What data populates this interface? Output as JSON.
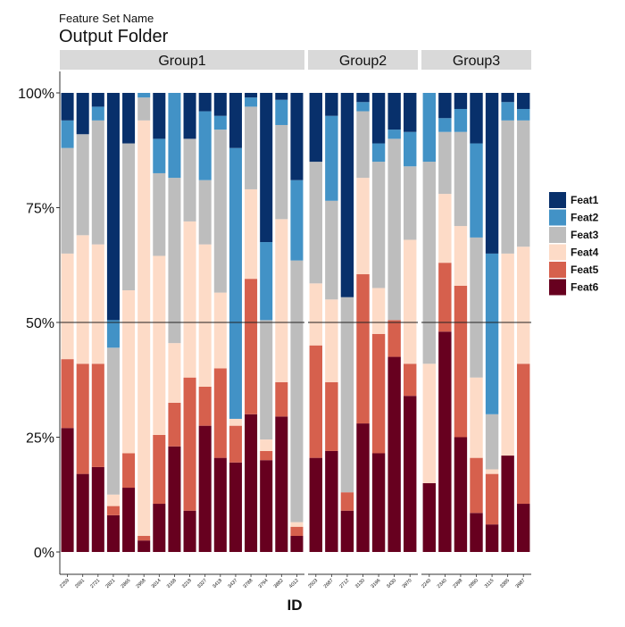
{
  "header": {
    "subtitle": "Feature Set Name",
    "title": "Output Folder"
  },
  "chart_data": {
    "type": "bar",
    "stacked": true,
    "normalized": true,
    "xlabel": "ID",
    "ylabel": "",
    "ylim": [
      0,
      1
    ],
    "yticks": [
      "0%",
      "25%",
      "50%",
      "75%",
      "100%"
    ],
    "reference_line": 0.5,
    "legend_placement": "right",
    "features": [
      "Feat1",
      "Feat2",
      "Feat3",
      "Feat4",
      "Feat5",
      "Feat6"
    ],
    "colors": {
      "Feat1": "#08306b",
      "Feat2": "#4292c6",
      "Feat3": "#bdbdbd",
      "Feat4": "#fddbc7",
      "Feat5": "#d6604d",
      "Feat6": "#67001f"
    },
    "groups": [
      {
        "name": "Group1",
        "samples": [
          {
            "id": "2259",
            "values": {
              "Feat6": 0.27,
              "Feat5": 0.15,
              "Feat4": 0.23,
              "Feat3": 0.23,
              "Feat2": 0.06,
              "Feat1": 0.06
            }
          },
          {
            "id": "2691",
            "values": {
              "Feat6": 0.17,
              "Feat5": 0.24,
              "Feat4": 0.28,
              "Feat3": 0.22,
              "Feat2": 0.0,
              "Feat1": 0.09
            }
          },
          {
            "id": "2721",
            "values": {
              "Feat6": 0.185,
              "Feat5": 0.225,
              "Feat4": 0.26,
              "Feat3": 0.27,
              "Feat2": 0.03,
              "Feat1": 0.03
            }
          },
          {
            "id": "2821",
            "values": {
              "Feat6": 0.08,
              "Feat5": 0.02,
              "Feat4": 0.025,
              "Feat3": 0.32,
              "Feat2": 0.06,
              "Feat1": 0.495
            }
          },
          {
            "id": "2865",
            "values": {
              "Feat6": 0.14,
              "Feat5": 0.075,
              "Feat4": 0.355,
              "Feat3": 0.32,
              "Feat2": 0.0,
              "Feat1": 0.11
            }
          },
          {
            "id": "2958",
            "values": {
              "Feat6": 0.025,
              "Feat5": 0.01,
              "Feat4": 0.905,
              "Feat3": 0.05,
              "Feat2": 0.01,
              "Feat1": 0.0
            }
          },
          {
            "id": "3014",
            "values": {
              "Feat6": 0.105,
              "Feat5": 0.15,
              "Feat4": 0.39,
              "Feat3": 0.18,
              "Feat2": 0.075,
              "Feat1": 0.1
            }
          },
          {
            "id": "3168",
            "values": {
              "Feat6": 0.23,
              "Feat5": 0.095,
              "Feat4": 0.13,
              "Feat3": 0.36,
              "Feat2": 0.185,
              "Feat1": 0.0
            }
          },
          {
            "id": "3218",
            "values": {
              "Feat6": 0.09,
              "Feat5": 0.29,
              "Feat4": 0.34,
              "Feat3": 0.18,
              "Feat2": 0.0,
              "Feat1": 0.1
            }
          },
          {
            "id": "3327",
            "values": {
              "Feat6": 0.275,
              "Feat5": 0.085,
              "Feat4": 0.31,
              "Feat3": 0.14,
              "Feat2": 0.15,
              "Feat1": 0.04
            }
          },
          {
            "id": "3418",
            "values": {
              "Feat6": 0.205,
              "Feat5": 0.195,
              "Feat4": 0.165,
              "Feat3": 0.355,
              "Feat2": 0.03,
              "Feat1": 0.05
            }
          },
          {
            "id": "3437",
            "values": {
              "Feat6": 0.195,
              "Feat5": 0.08,
              "Feat4": 0.015,
              "Feat3": 0.0,
              "Feat2": 0.59,
              "Feat1": 0.12
            }
          },
          {
            "id": "3788",
            "values": {
              "Feat6": 0.3,
              "Feat5": 0.295,
              "Feat4": 0.195,
              "Feat3": 0.18,
              "Feat2": 0.02,
              "Feat1": 0.01
            }
          },
          {
            "id": "3794",
            "values": {
              "Feat6": 0.2,
              "Feat5": 0.02,
              "Feat4": 0.025,
              "Feat3": 0.26,
              "Feat2": 0.17,
              "Feat1": 0.325
            }
          },
          {
            "id": "3882",
            "values": {
              "Feat6": 0.295,
              "Feat5": 0.075,
              "Feat4": 0.355,
              "Feat3": 0.205,
              "Feat2": 0.055,
              "Feat1": 0.015
            }
          },
          {
            "id": "4012",
            "values": {
              "Feat6": 0.035,
              "Feat5": 0.02,
              "Feat4": 0.01,
              "Feat3": 0.57,
              "Feat2": 0.175,
              "Feat1": 0.19
            }
          }
        ]
      },
      {
        "name": "Group2",
        "samples": [
          {
            "id": "2503",
            "values": {
              "Feat6": 0.205,
              "Feat5": 0.245,
              "Feat4": 0.135,
              "Feat3": 0.265,
              "Feat2": 0.0,
              "Feat1": 0.15
            }
          },
          {
            "id": "2687",
            "values": {
              "Feat6": 0.22,
              "Feat5": 0.15,
              "Feat4": 0.18,
              "Feat3": 0.215,
              "Feat2": 0.185,
              "Feat1": 0.05
            }
          },
          {
            "id": "2712",
            "values": {
              "Feat6": 0.09,
              "Feat5": 0.04,
              "Feat4": 0.0,
              "Feat3": 0.425,
              "Feat2": 0.0,
              "Feat1": 0.445
            }
          },
          {
            "id": "3130",
            "values": {
              "Feat6": 0.28,
              "Feat5": 0.325,
              "Feat4": 0.21,
              "Feat3": 0.145,
              "Feat2": 0.02,
              "Feat1": 0.02
            }
          },
          {
            "id": "3196",
            "values": {
              "Feat6": 0.215,
              "Feat5": 0.26,
              "Feat4": 0.1,
              "Feat3": 0.275,
              "Feat2": 0.04,
              "Feat1": 0.11
            }
          },
          {
            "id": "3430",
            "values": {
              "Feat6": 0.425,
              "Feat5": 0.08,
              "Feat4": 0.0,
              "Feat3": 0.395,
              "Feat2": 0.02,
              "Feat1": 0.08
            }
          },
          {
            "id": "3970",
            "values": {
              "Feat6": 0.34,
              "Feat5": 0.07,
              "Feat4": 0.27,
              "Feat3": 0.16,
              "Feat2": 0.075,
              "Feat1": 0.085
            }
          }
        ]
      },
      {
        "name": "Group3",
        "samples": [
          {
            "id": "2240",
            "values": {
              "Feat6": 0.15,
              "Feat5": 0.0,
              "Feat4": 0.26,
              "Feat3": 0.44,
              "Feat2": 0.15,
              "Feat1": 0.0
            }
          },
          {
            "id": "2340",
            "values": {
              "Feat6": 0.48,
              "Feat5": 0.15,
              "Feat4": 0.15,
              "Feat3": 0.135,
              "Feat2": 0.03,
              "Feat1": 0.055
            }
          },
          {
            "id": "2398",
            "values": {
              "Feat6": 0.25,
              "Feat5": 0.33,
              "Feat4": 0.13,
              "Feat3": 0.205,
              "Feat2": 0.05,
              "Feat1": 0.035
            }
          },
          {
            "id": "2890",
            "values": {
              "Feat6": 0.085,
              "Feat5": 0.12,
              "Feat4": 0.175,
              "Feat3": 0.305,
              "Feat2": 0.205,
              "Feat1": 0.11
            }
          },
          {
            "id": "3115",
            "values": {
              "Feat6": 0.06,
              "Feat5": 0.11,
              "Feat4": 0.01,
              "Feat3": 0.12,
              "Feat2": 0.35,
              "Feat1": 0.35
            }
          },
          {
            "id": "3385",
            "values": {
              "Feat6": 0.21,
              "Feat5": 0.0,
              "Feat4": 0.44,
              "Feat3": 0.29,
              "Feat2": 0.04,
              "Feat1": 0.02
            }
          },
          {
            "id": "3987",
            "values": {
              "Feat6": 0.105,
              "Feat5": 0.305,
              "Feat4": 0.255,
              "Feat3": 0.275,
              "Feat2": 0.025,
              "Feat1": 0.035
            }
          }
        ]
      }
    ]
  }
}
